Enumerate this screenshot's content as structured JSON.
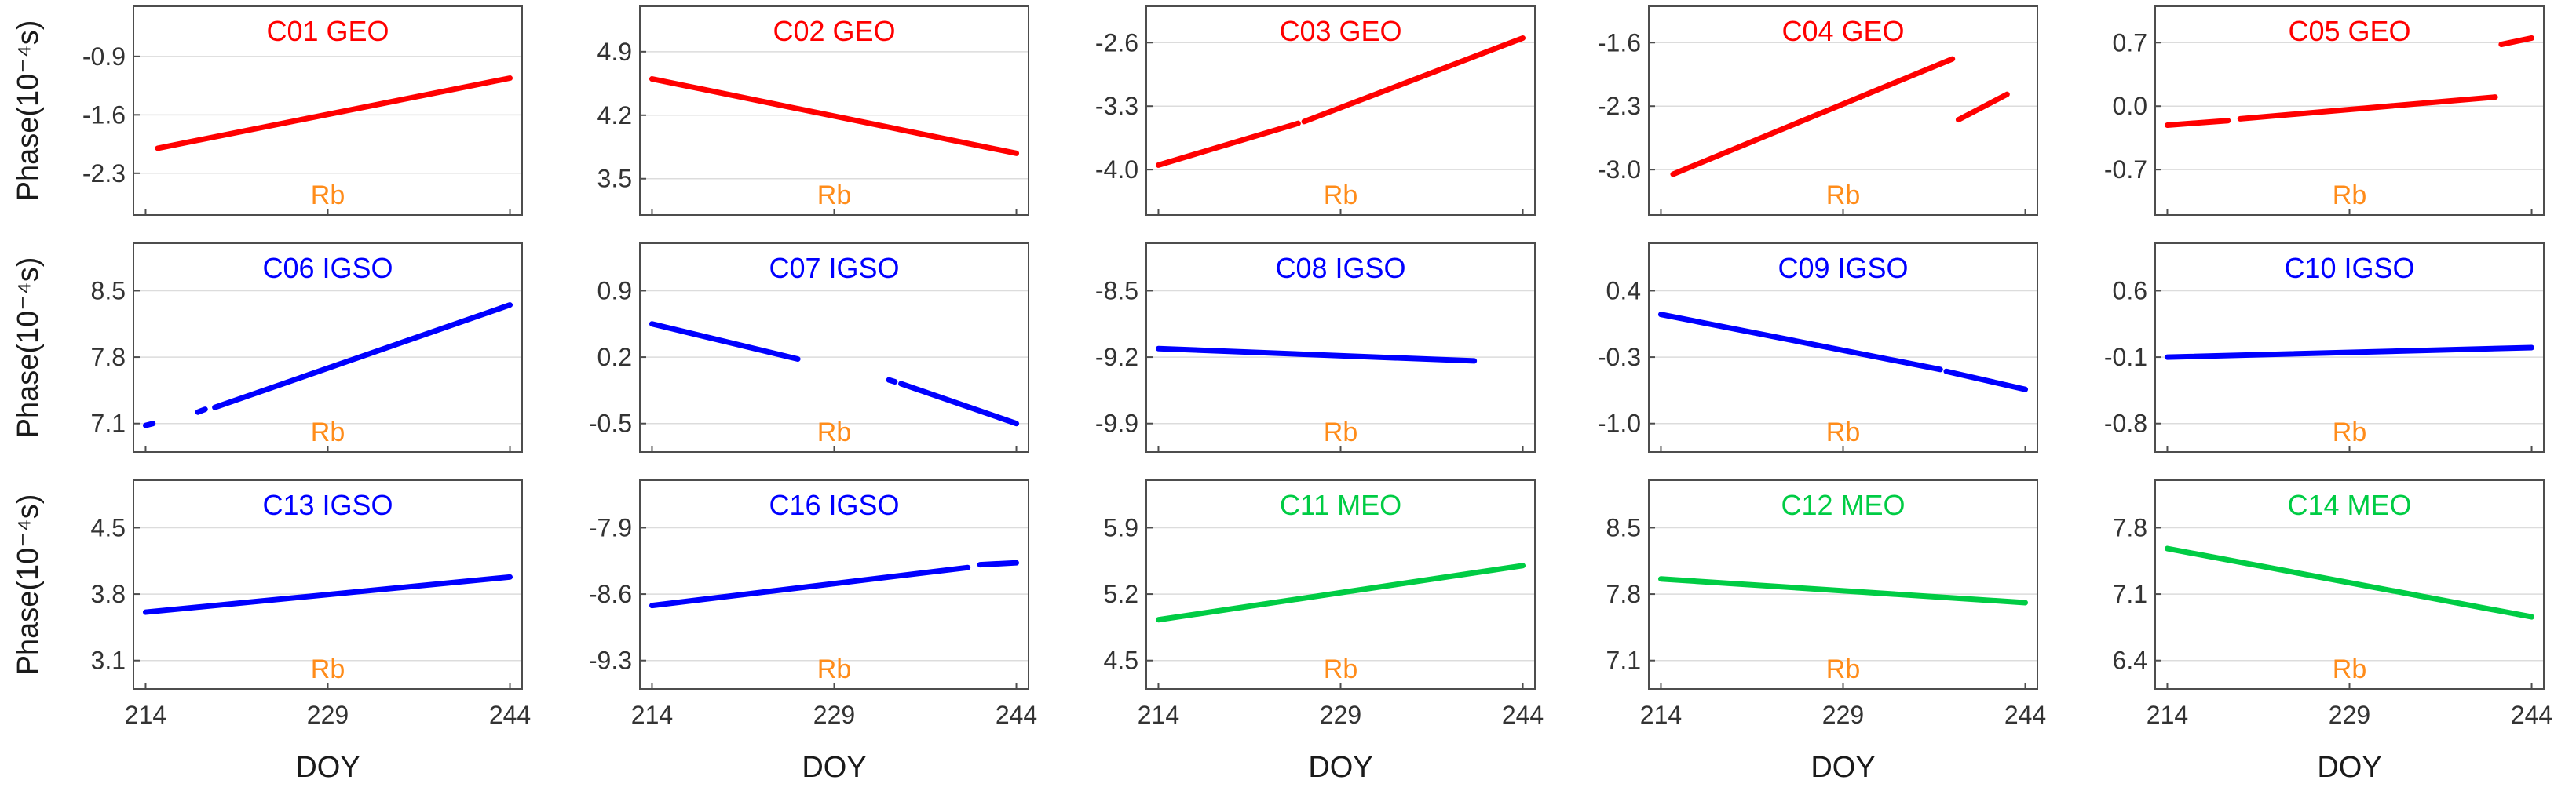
{
  "colors": {
    "GEO": "#ff0000",
    "IGSO": "#0000ff",
    "MEO": "#00cc44",
    "clock": "#ff8c1a"
  },
  "chart_data": {
    "type": "line",
    "xlabel": "DOY",
    "ylabel": "Phase(10⁻⁴s)",
    "x_ticks": [
      214,
      229,
      244
    ],
    "xlim": [
      213,
      245
    ],
    "grid": true,
    "panels": [
      {
        "title": "C01 GEO",
        "orbit": "GEO",
        "clock": "Rb",
        "yticks": [
          "-2.3",
          "-1.6",
          "-0.9"
        ],
        "ytick_values": [
          -2.3,
          -1.6,
          -0.9
        ],
        "ylim": [
          -2.8,
          -0.3
        ],
        "segments": [
          {
            "x": [
              215,
              244
            ],
            "y": [
              -2.0,
              -1.16
            ]
          }
        ]
      },
      {
        "title": "C02 GEO",
        "orbit": "GEO",
        "clock": "Rb",
        "yticks": [
          "3.5",
          "4.2",
          "4.9"
        ],
        "ytick_values": [
          3.5,
          4.2,
          4.9
        ],
        "ylim": [
          3.1,
          5.4
        ],
        "segments": [
          {
            "x": [
              214,
              244
            ],
            "y": [
              4.6,
              3.78
            ]
          }
        ]
      },
      {
        "title": "C03 GEO",
        "orbit": "GEO",
        "clock": "Rb",
        "yticks": [
          "-4.0",
          "-3.3",
          "-2.6"
        ],
        "ytick_values": [
          -4.0,
          -3.3,
          -2.6
        ],
        "ylim": [
          -4.5,
          -2.2
        ],
        "segments": [
          {
            "x": [
              214,
              225.5
            ],
            "y": [
              -3.95,
              -3.49
            ]
          },
          {
            "x": [
              226,
              244
            ],
            "y": [
              -3.47,
              -2.55
            ]
          }
        ]
      },
      {
        "title": "C04 GEO",
        "orbit": "GEO",
        "clock": "Rb",
        "yticks": [
          "-3.0",
          "-2.3",
          "-1.6"
        ],
        "ytick_values": [
          -3.0,
          -2.3,
          -1.6
        ],
        "ylim": [
          -3.5,
          -1.2
        ],
        "segments": [
          {
            "x": [
              215,
              238
            ],
            "y": [
              -3.05,
              -1.78
            ]
          },
          {
            "x": [
              238.5,
              242.5
            ],
            "y": [
              -2.45,
              -2.17
            ]
          }
        ]
      },
      {
        "title": "C05 GEO",
        "orbit": "GEO",
        "clock": "Rb",
        "yticks": [
          "-0.7",
          "0.0",
          "0.7"
        ],
        "ytick_values": [
          -0.7,
          0.0,
          0.7
        ],
        "ylim": [
          -1.2,
          1.1
        ],
        "segments": [
          {
            "x": [
              214,
              219
            ],
            "y": [
              -0.21,
              -0.16
            ]
          },
          {
            "x": [
              220,
              241
            ],
            "y": [
              -0.14,
              0.1
            ]
          },
          {
            "x": [
              241.5,
              244
            ],
            "y": [
              0.68,
              0.75
            ]
          }
        ]
      },
      {
        "title": "C06 IGSO",
        "orbit": "IGSO",
        "clock": "Rb",
        "yticks": [
          "7.1",
          "7.8",
          "8.5"
        ],
        "ytick_values": [
          7.1,
          7.8,
          8.5
        ],
        "ylim": [
          6.8,
          9.0
        ],
        "segments": [
          {
            "x": [
              214,
              214.6
            ],
            "y": [
              7.08,
              7.1
            ]
          },
          {
            "x": [
              218.3,
              218.9
            ],
            "y": [
              7.22,
              7.25
            ]
          },
          {
            "x": [
              219.7,
              244
            ],
            "y": [
              7.27,
              8.35
            ]
          }
        ]
      },
      {
        "title": "C07 IGSO",
        "orbit": "IGSO",
        "clock": "Rb",
        "yticks": [
          "-0.5",
          "0.2",
          "0.9"
        ],
        "ytick_values": [
          -0.5,
          0.2,
          0.9
        ],
        "ylim": [
          -0.8,
          1.4
        ],
        "segments": [
          {
            "x": [
              214,
              226
            ],
            "y": [
              0.55,
              0.18
            ]
          },
          {
            "x": [
              233.5,
              234
            ],
            "y": [
              -0.04,
              -0.06
            ]
          },
          {
            "x": [
              234.5,
              244
            ],
            "y": [
              -0.08,
              -0.5
            ]
          }
        ]
      },
      {
        "title": "C08 IGSO",
        "orbit": "IGSO",
        "clock": "Rb",
        "yticks": [
          "-9.9",
          "-9.2",
          "-8.5"
        ],
        "ytick_values": [
          -9.9,
          -9.2,
          -8.5
        ],
        "ylim": [
          -10.2,
          -8.0
        ],
        "segments": [
          {
            "x": [
              214,
              240
            ],
            "y": [
              -9.11,
              -9.24
            ]
          }
        ]
      },
      {
        "title": "C09 IGSO",
        "orbit": "IGSO",
        "clock": "Rb",
        "yticks": [
          "-1.0",
          "-0.3",
          "0.4"
        ],
        "ytick_values": [
          -1.0,
          -0.3,
          0.4
        ],
        "ylim": [
          -1.3,
          0.9
        ],
        "segments": [
          {
            "x": [
              214,
              237
            ],
            "y": [
              0.15,
              -0.43
            ]
          },
          {
            "x": [
              237.5,
              244
            ],
            "y": [
              -0.45,
              -0.64
            ]
          }
        ]
      },
      {
        "title": "C10 IGSO",
        "orbit": "IGSO",
        "clock": "Rb",
        "yticks": [
          "-0.8",
          "-0.1",
          "0.6"
        ],
        "ytick_values": [
          -0.8,
          -0.1,
          0.6
        ],
        "ylim": [
          -1.1,
          1.1
        ],
        "segments": [
          {
            "x": [
              214,
              244
            ],
            "y": [
              -0.1,
              0.0
            ]
          }
        ]
      },
      {
        "title": "C13 IGSO",
        "orbit": "IGSO",
        "clock": "Rb",
        "yticks": [
          "3.1",
          "3.8",
          "4.5"
        ],
        "ytick_values": [
          3.1,
          3.8,
          4.5
        ],
        "ylim": [
          2.8,
          5.0
        ],
        "segments": [
          {
            "x": [
              214,
              244
            ],
            "y": [
              3.61,
              3.98
            ]
          }
        ]
      },
      {
        "title": "C16 IGSO",
        "orbit": "IGSO",
        "clock": "Rb",
        "yticks": [
          "-9.3",
          "-8.6",
          "-7.9"
        ],
        "ytick_values": [
          -9.3,
          -8.6,
          -7.9
        ],
        "ylim": [
          -9.6,
          -7.4
        ],
        "segments": [
          {
            "x": [
              214,
              240
            ],
            "y": [
              -8.72,
              -8.32
            ]
          },
          {
            "x": [
              241,
              244
            ],
            "y": [
              -8.29,
              -8.27
            ]
          }
        ]
      },
      {
        "title": "C11 MEO",
        "orbit": "MEO",
        "clock": "Rb",
        "yticks": [
          "4.5",
          "5.2",
          "5.9"
        ],
        "ytick_values": [
          4.5,
          5.2,
          5.9
        ],
        "ylim": [
          4.2,
          6.4
        ],
        "segments": [
          {
            "x": [
              214,
              244
            ],
            "y": [
              4.93,
              5.5
            ]
          }
        ]
      },
      {
        "title": "C12 MEO",
        "orbit": "MEO",
        "clock": "Rb",
        "yticks": [
          "7.1",
          "7.8",
          "8.5"
        ],
        "ytick_values": [
          7.1,
          7.8,
          8.5
        ],
        "ylim": [
          6.8,
          9.0
        ],
        "segments": [
          {
            "x": [
              214,
              244
            ],
            "y": [
              7.96,
              7.71
            ]
          }
        ]
      },
      {
        "title": "C14 MEO",
        "orbit": "MEO",
        "clock": "Rb",
        "yticks": [
          "6.4",
          "7.1",
          "7.8"
        ],
        "ytick_values": [
          6.4,
          7.1,
          7.8
        ],
        "ylim": [
          6.1,
          8.3
        ],
        "segments": [
          {
            "x": [
              214,
              244
            ],
            "y": [
              7.58,
              6.86
            ]
          }
        ]
      }
    ]
  }
}
